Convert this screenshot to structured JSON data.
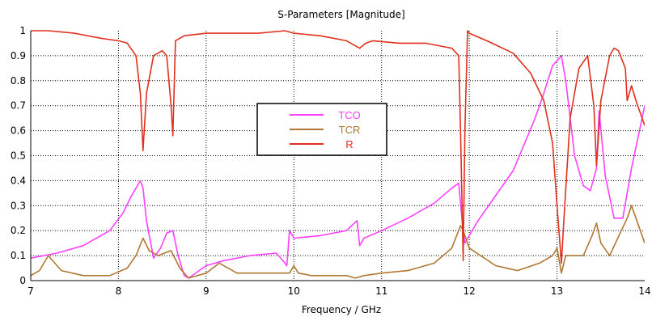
{
  "chart_data": {
    "type": "line",
    "title": "S-Parameters [Magnitude]",
    "xlabel": "Frequency / GHz",
    "ylabel": "",
    "xlim": [
      7,
      14
    ],
    "ylim": [
      0,
      1
    ],
    "xticks": [
      "7",
      "8",
      "9",
      "10",
      "11",
      "12",
      "13",
      "14"
    ],
    "yticks": [
      "0",
      "0.1",
      "0.2",
      "0.3",
      "0.4",
      "0.5",
      "0.6",
      "0.7",
      "0.8",
      "0.9",
      "1"
    ],
    "grid": true,
    "legend_position": "center-left",
    "series": [
      {
        "name": "TCO",
        "color": "#ff40ff",
        "x": [
          7.0,
          7.3,
          7.6,
          7.9,
          8.05,
          8.15,
          8.25,
          8.28,
          8.32,
          8.4,
          8.48,
          8.55,
          8.62,
          8.68,
          8.75,
          8.8,
          9.0,
          9.2,
          9.5,
          9.8,
          9.9,
          9.92,
          9.95,
          10.0,
          10.3,
          10.6,
          10.72,
          10.75,
          10.8,
          11.0,
          11.3,
          11.6,
          11.8,
          11.88,
          11.92,
          11.95,
          12.0,
          12.1,
          12.5,
          12.75,
          12.85,
          12.95,
          13.05,
          13.1,
          13.2,
          13.3,
          13.38,
          13.45,
          13.48,
          13.55,
          13.65,
          13.75,
          13.85,
          14.0
        ],
        "y": [
          0.09,
          0.11,
          0.14,
          0.2,
          0.27,
          0.34,
          0.4,
          0.37,
          0.24,
          0.09,
          0.13,
          0.19,
          0.2,
          0.1,
          0.02,
          0.01,
          0.06,
          0.08,
          0.1,
          0.11,
          0.07,
          0.06,
          0.2,
          0.17,
          0.18,
          0.2,
          0.24,
          0.14,
          0.17,
          0.2,
          0.25,
          0.31,
          0.37,
          0.39,
          0.23,
          0.15,
          0.18,
          0.24,
          0.44,
          0.65,
          0.75,
          0.86,
          0.9,
          0.8,
          0.5,
          0.38,
          0.36,
          0.45,
          0.68,
          0.42,
          0.25,
          0.25,
          0.45,
          0.7
        ]
      },
      {
        "name": "TCR",
        "color": "#b07830",
        "x": [
          7.0,
          7.1,
          7.2,
          7.35,
          7.6,
          7.9,
          8.1,
          8.2,
          8.28,
          8.35,
          8.45,
          8.6,
          8.7,
          8.8,
          9.0,
          9.15,
          9.3,
          9.35,
          9.6,
          9.95,
          10.0,
          10.05,
          10.2,
          10.6,
          10.7,
          10.8,
          11.0,
          11.3,
          11.6,
          11.8,
          11.9,
          11.93,
          12.0,
          12.3,
          12.55,
          12.8,
          12.95,
          13.0,
          13.05,
          13.1,
          13.3,
          13.4,
          13.45,
          13.5,
          13.6,
          13.8,
          13.85,
          13.95,
          14.0
        ],
        "y": [
          0.02,
          0.04,
          0.1,
          0.04,
          0.02,
          0.02,
          0.05,
          0.1,
          0.17,
          0.12,
          0.1,
          0.12,
          0.05,
          0.01,
          0.03,
          0.07,
          0.04,
          0.03,
          0.03,
          0.03,
          0.06,
          0.03,
          0.02,
          0.02,
          0.01,
          0.02,
          0.03,
          0.04,
          0.07,
          0.13,
          0.22,
          0.2,
          0.13,
          0.06,
          0.04,
          0.07,
          0.1,
          0.13,
          0.03,
          0.1,
          0.1,
          0.18,
          0.23,
          0.15,
          0.1,
          0.25,
          0.3,
          0.2,
          0.15
        ]
      },
      {
        "name": "R",
        "color": "#e0301e",
        "x": [
          7.0,
          7.2,
          7.5,
          7.8,
          8.0,
          8.1,
          8.2,
          8.25,
          8.28,
          8.32,
          8.4,
          8.5,
          8.55,
          8.6,
          8.62,
          8.65,
          8.75,
          9.0,
          9.3,
          9.6,
          9.9,
          10.0,
          10.3,
          10.6,
          10.75,
          10.82,
          10.9,
          11.2,
          11.5,
          11.8,
          11.88,
          11.9,
          11.93,
          11.95,
          11.98,
          12.0,
          12.2,
          12.5,
          12.7,
          12.85,
          12.95,
          13.0,
          13.05,
          13.08,
          13.15,
          13.25,
          13.35,
          13.42,
          13.45,
          13.5,
          13.6,
          13.65,
          13.7,
          13.78,
          13.8,
          13.85,
          13.9,
          14.0
        ],
        "y": [
          1.0,
          1.0,
          0.99,
          0.97,
          0.96,
          0.95,
          0.9,
          0.75,
          0.52,
          0.75,
          0.9,
          0.92,
          0.9,
          0.7,
          0.58,
          0.96,
          0.98,
          0.99,
          0.99,
          0.99,
          1.0,
          0.99,
          0.98,
          0.96,
          0.93,
          0.95,
          0.96,
          0.95,
          0.95,
          0.93,
          0.9,
          0.6,
          0.08,
          0.6,
          1.0,
          0.99,
          0.96,
          0.91,
          0.83,
          0.72,
          0.55,
          0.3,
          0.07,
          0.25,
          0.65,
          0.85,
          0.9,
          0.7,
          0.46,
          0.72,
          0.9,
          0.93,
          0.92,
          0.85,
          0.72,
          0.78,
          0.72,
          0.62
        ]
      }
    ]
  }
}
